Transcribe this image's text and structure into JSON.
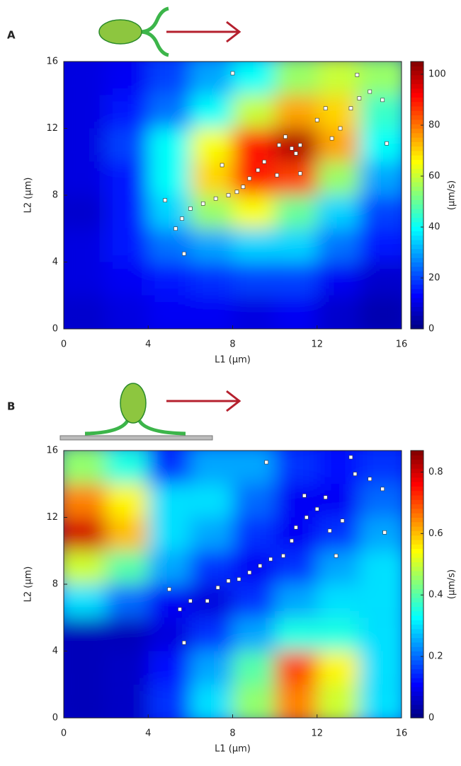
{
  "chart_data": [
    {
      "type": "contour",
      "panel": "A",
      "xlabel": "L1 (μm)",
      "ylabel": "L2 (μm)",
      "colormap": "jet",
      "xlim": [
        0,
        16
      ],
      "ylim": [
        0,
        16
      ],
      "xticks": [
        0,
        4,
        8,
        12,
        16
      ],
      "yticks": [
        0,
        4,
        8,
        12,
        16
      ],
      "colorbar": {
        "label": "(μm/s)",
        "lim": [
          0,
          105
        ],
        "ticks": [
          0,
          20,
          40,
          60,
          80,
          100
        ]
      },
      "grid": {
        "x": [
          1,
          3,
          5,
          7,
          9,
          11,
          13,
          15
        ],
        "y": [
          15,
          13,
          11,
          9,
          7,
          5,
          3,
          1
        ],
        "z": [
          [
            10,
            12,
            20,
            30,
            40,
            55,
            60,
            55
          ],
          [
            10,
            15,
            25,
            40,
            60,
            75,
            70,
            45
          ],
          [
            10,
            20,
            40,
            65,
            90,
            100,
            75,
            40
          ],
          [
            10,
            15,
            40,
            70,
            90,
            85,
            55,
            30
          ],
          [
            8,
            15,
            35,
            55,
            65,
            50,
            35,
            20
          ],
          [
            10,
            15,
            25,
            30,
            35,
            35,
            25,
            15
          ],
          [
            10,
            12,
            15,
            18,
            20,
            20,
            12,
            8
          ],
          [
            8,
            10,
            12,
            12,
            10,
            12,
            8,
            5
          ]
        ]
      },
      "points": {
        "x": [
          10.5,
          10.8,
          11,
          11.2,
          10.2,
          9.5,
          9.2,
          8.8,
          8.5,
          8.2,
          7.8,
          7.2,
          6.6,
          6,
          5.6,
          5.3,
          4.8,
          5.7,
          7.5,
          10.1,
          11.2,
          12,
          12.4,
          13.1,
          14,
          14.5,
          15.1,
          13.9,
          15.3,
          13.6,
          12.7,
          8
        ],
        "y": [
          11.5,
          10.8,
          10.5,
          11,
          11,
          10,
          9.5,
          9,
          8.5,
          8.2,
          8,
          7.8,
          7.5,
          7.2,
          6.6,
          6,
          7.7,
          4.5,
          9.8,
          9.2,
          9.3,
          12.5,
          13.2,
          12,
          13.8,
          14.2,
          13.7,
          15.2,
          11.1,
          13.2,
          11.4,
          15.3
        ]
      }
    },
    {
      "type": "contour",
      "panel": "B",
      "xlabel": "L1 (μm)",
      "ylabel": "L2 (μm)",
      "colormap": "jet",
      "xlim": [
        0,
        16
      ],
      "ylim": [
        0,
        16
      ],
      "xticks": [
        0,
        4,
        8,
        12,
        16
      ],
      "yticks": [
        0,
        4,
        8,
        12,
        16
      ],
      "colorbar": {
        "label": "(μm/s)",
        "lim": [
          0,
          0.87
        ],
        "ticks": [
          0,
          0.2,
          0.4,
          0.6,
          0.8
        ]
      },
      "grid": {
        "x": [
          1,
          3,
          5,
          7,
          9,
          11,
          13,
          15
        ],
        "y": [
          15,
          13,
          11,
          9,
          7,
          5,
          3,
          1
        ],
        "z": [
          [
            0.45,
            0.35,
            0.15,
            0.25,
            0.25,
            0.15,
            0.12,
            0.15
          ],
          [
            0.65,
            0.55,
            0.3,
            0.3,
            0.2,
            0.1,
            0.1,
            0.2
          ],
          [
            0.8,
            0.6,
            0.3,
            0.25,
            0.15,
            0.1,
            0.15,
            0.25
          ],
          [
            0.5,
            0.4,
            0.25,
            0.15,
            0.1,
            0.15,
            0.25,
            0.3
          ],
          [
            0.3,
            0.2,
            0.1,
            0.08,
            0.15,
            0.25,
            0.3,
            0.3
          ],
          [
            0.05,
            0.05,
            0.08,
            0.15,
            0.25,
            0.35,
            0.35,
            0.3
          ],
          [
            0.05,
            0.06,
            0.12,
            0.25,
            0.4,
            0.7,
            0.55,
            0.3
          ],
          [
            0.05,
            0.06,
            0.15,
            0.3,
            0.45,
            0.65,
            0.5,
            0.3
          ]
        ]
      },
      "points": {
        "x": [
          5,
          5.7,
          5.5,
          6,
          6.8,
          7.3,
          7.8,
          8.3,
          8.8,
          9.3,
          9.8,
          10.4,
          10.8,
          11,
          11.5,
          12,
          12.4,
          11.4,
          12.6,
          13.2,
          13.8,
          14.5,
          15.1,
          15.2,
          13.6,
          9.6,
          12.9
        ],
        "y": [
          7.7,
          4.5,
          6.5,
          7,
          7,
          7.8,
          8.2,
          8.3,
          8.7,
          9.1,
          9.5,
          9.7,
          10.6,
          11.4,
          12,
          12.5,
          13.2,
          13.3,
          11.2,
          11.8,
          14.6,
          14.3,
          13.7,
          11.1,
          15.6,
          15.3,
          9.7
        ]
      }
    }
  ]
}
